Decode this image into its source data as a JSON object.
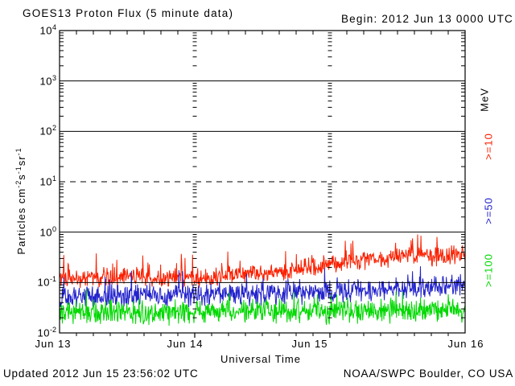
{
  "header": {
    "title": "GOES13 Proton Flux (5 minute data)",
    "begin_label": "Begin: 2012 Jun 13 0000 UTC"
  },
  "footer": {
    "updated": "Updated 2012 Jun 15 23:56:02 UTC",
    "source": "NOAA/SWPC Boulder, CO USA"
  },
  "chart_data": {
    "type": "line",
    "title": "GOES13 Proton Flux (5 minute data)",
    "subtitle": "Begin: 2012 Jun 13 0000 UTC",
    "xlabel": "Universal Time",
    "ylabel": "Particles cm-2 s-1 sr-1",
    "ylabel_parts": [
      {
        "text": "Particles  cm"
      },
      {
        "sup": "-2"
      },
      {
        "text": "s"
      },
      {
        "sup": "-1"
      },
      {
        "text": "sr"
      },
      {
        "sup": "-1"
      }
    ],
    "y_scale": "log10",
    "ylim": [
      0.01,
      10000
    ],
    "y_ticks": [
      {
        "base": "10",
        "exp": "4"
      },
      {
        "base": "10",
        "exp": "3"
      },
      {
        "base": "10",
        "exp": "2"
      },
      {
        "base": "10",
        "exp": "1"
      },
      {
        "base": "10",
        "exp": "0"
      },
      {
        "base": "10",
        "exp": "-1"
      },
      {
        "base": "10",
        "exp": "-2"
      }
    ],
    "x_ticks": [
      "Jun 13",
      "Jun 14",
      "Jun 15",
      "Jun 16"
    ],
    "x_minor_tick_hours": 3,
    "hours_total": 72,
    "cadence_minutes": 5,
    "grid": {
      "solid_decades": [
        3,
        2,
        0,
        -1
      ],
      "dashed_decades": [
        1
      ]
    },
    "right_axis_unit": "MeV",
    "series": [
      {
        "name": ">=10",
        "threshold_mev": 10,
        "color": "#fb2000",
        "profile_hours": [
          0,
          6,
          12,
          18,
          24,
          30,
          36,
          42,
          48,
          52,
          56,
          60,
          63,
          66,
          69,
          72
        ],
        "profile_flux": [
          0.12,
          0.12,
          0.13,
          0.12,
          0.125,
          0.13,
          0.15,
          0.18,
          0.22,
          0.25,
          0.29,
          0.33,
          0.36,
          0.33,
          0.35,
          0.38
        ],
        "noise_sigma_log10": 0.11,
        "spike_prob": 0.05,
        "spike_log10_range": [
          0.12,
          0.45
        ],
        "max_flux": 0.9,
        "seed": 1301
      },
      {
        "name": ">=50",
        "threshold_mev": 50,
        "color": "#2222cc",
        "profile_hours": [
          0,
          12,
          24,
          36,
          48,
          54,
          60,
          66,
          72
        ],
        "profile_flux": [
          0.052,
          0.054,
          0.056,
          0.058,
          0.063,
          0.068,
          0.075,
          0.08,
          0.085
        ],
        "noise_sigma_log10": 0.13,
        "spike_prob": 0.05,
        "spike_log10_range": [
          0.1,
          0.38
        ],
        "max_flux": 0.21,
        "seed": 2177
      },
      {
        "name": ">=100",
        "threshold_mev": 100,
        "color": "#00d800",
        "profile_hours": [
          0,
          24,
          48,
          72
        ],
        "profile_flux": [
          0.026,
          0.026,
          0.027,
          0.028
        ],
        "noise_sigma_log10": 0.14,
        "spike_prob": 0.04,
        "spike_log10_range": [
          0.1,
          0.32
        ],
        "max_flux": 0.075,
        "seed": 3313
      }
    ]
  }
}
